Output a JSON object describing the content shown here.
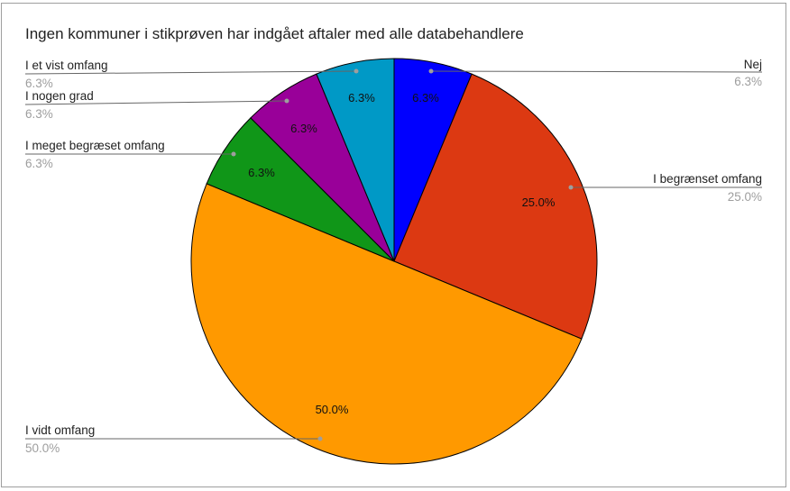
{
  "chart_data": {
    "type": "pie",
    "title": "Ingen kommuner i stikprøven har indgået aftaler med alle databehandlere",
    "start": "top, clockwise",
    "legend": "labeled leader lines",
    "slices": [
      {
        "label": "Nej",
        "value": 6.25,
        "display": "6.3%",
        "color": "#0000ff"
      },
      {
        "label": "I begrænset omfang",
        "value": 25.0,
        "display": "25.0%",
        "color": "#dc3912"
      },
      {
        "label": "I vidt omfang",
        "value": 50.0,
        "display": "50.0%",
        "color": "#ff9900"
      },
      {
        "label": "I meget begræset omfang",
        "value": 6.25,
        "display": "6.3%",
        "color": "#109618"
      },
      {
        "label": "I nogen grad",
        "value": 6.25,
        "display": "6.3%",
        "color": "#990099"
      },
      {
        "label": "I et vist omfang",
        "value": 6.25,
        "display": "6.3%",
        "color": "#0099c6"
      }
    ]
  }
}
